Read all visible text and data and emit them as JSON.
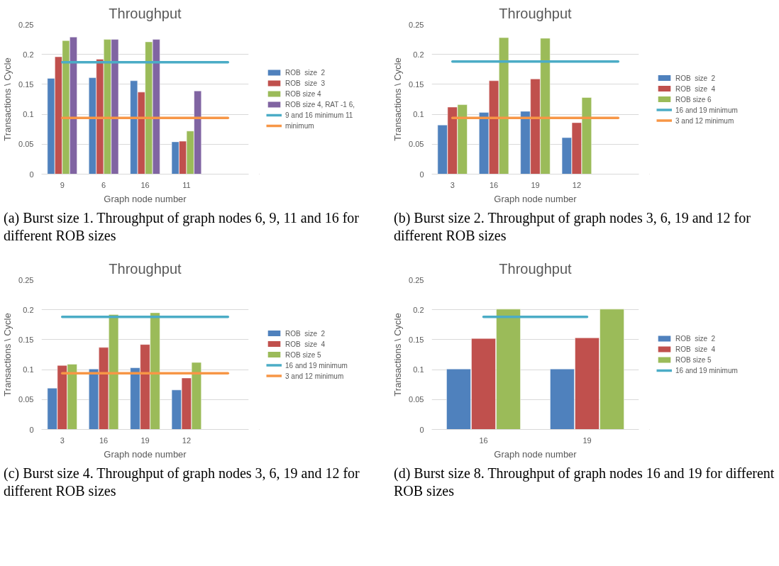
{
  "chart_data": [
    {
      "type": "bar",
      "title": "Throughput",
      "xlabel": "Graph node number",
      "ylabel": "Transactions \\ Cycle",
      "categories": [
        "9",
        "6",
        "16",
        "11",
        null
      ],
      "ylim": [
        0,
        0.25
      ],
      "yticks": [
        0,
        0.05,
        0.1,
        0.15,
        0.2,
        0.25
      ],
      "grid": "y",
      "legend": "right",
      "series": [
        {
          "name": "ROB  size  2",
          "color": "#4f81bd",
          "values": [
            0.16,
            0.161,
            0.156,
            0.054,
            null
          ]
        },
        {
          "name": "ROB  size  3",
          "color": "#c0504d",
          "values": [
            0.196,
            0.192,
            0.137,
            0.055,
            null
          ]
        },
        {
          "name": "ROB size 4",
          "color": "#9bbb59",
          "values": [
            0.223,
            0.225,
            0.221,
            0.072,
            null
          ]
        },
        {
          "name": "ROB size 4, RAT -1 6,",
          "color": "#8064a2",
          "values": [
            0.229,
            0.225,
            0.225,
            0.139,
            null
          ]
        },
        {
          "name": "9 and 16 minimum 11",
          "type": "line",
          "color": "#4bacc6",
          "values": [
            0.187,
            0.187,
            0.187,
            0.187,
            0.187
          ]
        },
        {
          "name": "minimum",
          "type": "line",
          "color": "#f79646",
          "values": [
            0.094,
            0.094,
            0.094,
            0.094,
            0.094
          ]
        }
      ],
      "annotations": [
        "(a) Burst size 1. Throughput of graph nodes 6, 9, 11 and 16 for different ROB sizes"
      ]
    },
    {
      "type": "bar",
      "title": "Throughput",
      "xlabel": "Graph node number",
      "ylabel": "Transactions \\ Cycle",
      "categories": [
        "3",
        "16",
        "19",
        "12",
        null
      ],
      "ylim": [
        0,
        0.25
      ],
      "yticks": [
        0,
        0.05,
        0.1,
        0.15,
        0.2,
        0.25
      ],
      "grid": "y",
      "legend": "right",
      "series": [
        {
          "name": "ROB  size  2",
          "color": "#4f81bd",
          "values": [
            0.082,
            0.103,
            0.105,
            0.061,
            null
          ]
        },
        {
          "name": "ROB  size  4",
          "color": "#c0504d",
          "values": [
            0.112,
            0.156,
            0.159,
            0.086,
            null
          ]
        },
        {
          "name": "ROB size 6",
          "color": "#9bbb59",
          "values": [
            0.116,
            0.228,
            0.227,
            0.128,
            null
          ]
        },
        {
          "name": "16 and 19 minimum",
          "type": "line",
          "color": "#4bacc6",
          "values": [
            0.188,
            0.188,
            0.188,
            0.188,
            0.188
          ]
        },
        {
          "name": "3 and 12 minimum",
          "type": "line",
          "color": "#f79646",
          "values": [
            0.094,
            0.094,
            0.094,
            0.094,
            0.094
          ]
        }
      ],
      "annotations": [
        "(b) Burst size 2. Throughput of graph nodes 3, 6, 19 and 12 for different ROB sizes"
      ]
    },
    {
      "type": "bar",
      "title": "Throughput",
      "xlabel": "Graph node number",
      "ylabel": "Transactions \\ Cycle",
      "categories": [
        "3",
        "16",
        "19",
        "12",
        null
      ],
      "ylim": [
        0,
        0.25
      ],
      "yticks": [
        0,
        0.05,
        0.1,
        0.15,
        0.2,
        0.25
      ],
      "grid": "y",
      "legend": "right",
      "series": [
        {
          "name": "ROB  size  2",
          "color": "#4f81bd",
          "values": [
            0.069,
            0.101,
            0.103,
            0.066,
            null
          ]
        },
        {
          "name": "ROB  size  4",
          "color": "#c0504d",
          "values": [
            0.107,
            0.137,
            0.142,
            0.086,
            null
          ]
        },
        {
          "name": "ROB size 5",
          "color": "#9bbb59",
          "values": [
            0.109,
            0.192,
            0.195,
            0.112,
            null
          ]
        },
        {
          "name": "16 and 19 minimum",
          "type": "line",
          "color": "#4bacc6",
          "values": [
            0.188,
            0.188,
            0.188,
            0.188,
            0.188
          ]
        },
        {
          "name": "3 and 12 minimum",
          "type": "line",
          "color": "#f79646",
          "values": [
            0.094,
            0.094,
            0.094,
            0.094,
            0.094
          ]
        }
      ],
      "annotations": [
        "(c) Burst size 4. Throughput of graph nodes 3, 6, 19 and 12 for different ROB sizes"
      ]
    },
    {
      "type": "bar",
      "title": "Throughput",
      "xlabel": "Graph node number",
      "ylabel": "Transactions \\ Cycle",
      "categories": [
        "16",
        "19"
      ],
      "ylim": [
        0,
        0.25
      ],
      "yticks": [
        0,
        0.05,
        0.1,
        0.15,
        0.2,
        0.25
      ],
      "grid": "y",
      "legend": "right",
      "series": [
        {
          "name": "ROB  size  2",
          "color": "#4f81bd",
          "values": [
            0.101,
            0.101
          ]
        },
        {
          "name": "ROB  size  4",
          "color": "#c0504d",
          "values": [
            0.152,
            0.153
          ]
        },
        {
          "name": "ROB size 5",
          "color": "#9bbb59",
          "values": [
            0.201,
            0.201
          ]
        },
        {
          "name": "16 and 19 minimum",
          "type": "line",
          "color": "#4bacc6",
          "values": [
            0.188,
            0.188
          ]
        }
      ],
      "annotations": [
        "(d) Burst size 8. Throughput of graph nodes 16 and 19 for different ROB sizes"
      ]
    }
  ]
}
